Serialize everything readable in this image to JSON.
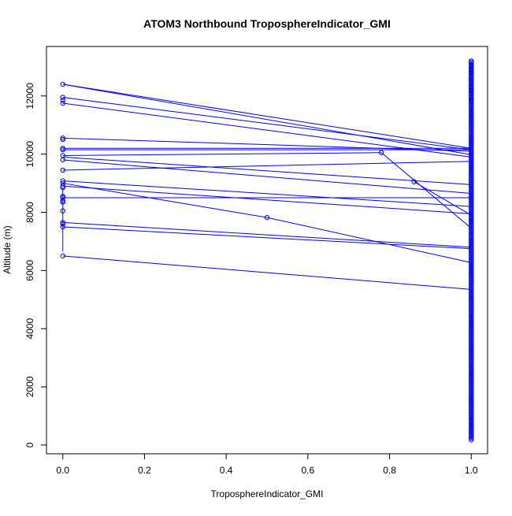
{
  "chart_data": {
    "type": "scatter",
    "title": "ATOM3 Northbound TroposphereIndicator_GMI",
    "xlabel": "TroposphereIndicator_GMI",
    "ylabel": "Altitude (m)",
    "xlim": [
      -0.04,
      1.04
    ],
    "ylim": [
      -300,
      13700
    ],
    "x_ticks": [
      0.0,
      0.2,
      0.4,
      0.6,
      0.8,
      1.0
    ],
    "x_tick_labels": [
      "0.0",
      "0.2",
      "0.4",
      "0.6",
      "0.8",
      "1.0"
    ],
    "y_ticks": [
      0,
      2000,
      4000,
      6000,
      8000,
      10000,
      12000
    ],
    "y_tick_labels": [
      "0",
      "2000",
      "4000",
      "6000",
      "8000",
      "10000",
      "12000"
    ],
    "grid": false,
    "legend": "none",
    "series_color": "#0000ff",
    "marker": "open-circle",
    "points": [
      {
        "x": 0.0,
        "y": 12400
      },
      {
        "x": 0.0,
        "y": 11950
      },
      {
        "x": 0.0,
        "y": 11850
      },
      {
        "x": 0.0,
        "y": 11750
      },
      {
        "x": 0.0,
        "y": 10550
      },
      {
        "x": 0.0,
        "y": 10500
      },
      {
        "x": 0.0,
        "y": 10200
      },
      {
        "x": 0.0,
        "y": 10150
      },
      {
        "x": 0.0,
        "y": 9950
      },
      {
        "x": 0.0,
        "y": 9800
      },
      {
        "x": 0.0,
        "y": 9450
      },
      {
        "x": 0.0,
        "y": 9080
      },
      {
        "x": 0.0,
        "y": 9000
      },
      {
        "x": 0.0,
        "y": 8900
      },
      {
        "x": 0.0,
        "y": 8850
      },
      {
        "x": 0.0,
        "y": 8550
      },
      {
        "x": 0.0,
        "y": 8500
      },
      {
        "x": 0.0,
        "y": 8400
      },
      {
        "x": 0.0,
        "y": 8350
      },
      {
        "x": 0.0,
        "y": 8050
      },
      {
        "x": 0.0,
        "y": 7650
      },
      {
        "x": 0.0,
        "y": 7600
      },
      {
        "x": 0.0,
        "y": 7500
      },
      {
        "x": 0.0,
        "y": 6500
      },
      {
        "x": 0.5,
        "y": 7820
      },
      {
        "x": 0.78,
        "y": 10050
      },
      {
        "x": 0.86,
        "y": 9050
      }
    ],
    "x1_column": {
      "x": 1.0,
      "y_min": 180,
      "y_max": 13200,
      "step": 55
    },
    "x1_extra": [
      13200,
      12900,
      12800,
      12550,
      12500,
      12300,
      12200,
      11850,
      11800
    ],
    "segments": [
      {
        "x1": 0.0,
        "y1": 12400,
        "x2": 1.0,
        "y2": 10200
      },
      {
        "x1": 0.0,
        "y1": 12400,
        "x2": 1.0,
        "y2": 9980
      },
      {
        "x1": 0.0,
        "y1": 11950,
        "x2": 1.0,
        "y2": 10150
      },
      {
        "x1": 0.0,
        "y1": 11750,
        "x2": 1.0,
        "y2": 9900
      },
      {
        "x1": 0.0,
        "y1": 10550,
        "x2": 1.0,
        "y2": 10100
      },
      {
        "x1": 0.0,
        "y1": 10200,
        "x2": 1.0,
        "y2": 10200
      },
      {
        "x1": 0.0,
        "y1": 10150,
        "x2": 1.0,
        "y2": 10150
      },
      {
        "x1": 0.0,
        "y1": 9950,
        "x2": 0.78,
        "y2": 10050
      },
      {
        "x1": 0.0,
        "y1": 9900,
        "x2": 1.0,
        "y2": 8950
      },
      {
        "x1": 0.0,
        "y1": 9800,
        "x2": 1.0,
        "y2": 8650
      },
      {
        "x1": 0.0,
        "y1": 9450,
        "x2": 1.0,
        "y2": 9750
      },
      {
        "x1": 0.0,
        "y1": 9080,
        "x2": 1.0,
        "y2": 8200
      },
      {
        "x1": 0.0,
        "y1": 9000,
        "x2": 0.5,
        "y2": 7820
      },
      {
        "x1": 0.0,
        "y1": 8900,
        "x2": 1.0,
        "y2": 7950
      },
      {
        "x1": 0.0,
        "y1": 8500,
        "x2": 1.0,
        "y2": 8500
      },
      {
        "x1": 0.0,
        "y1": 7650,
        "x2": 1.0,
        "y2": 6800
      },
      {
        "x1": 0.0,
        "y1": 7500,
        "x2": 1.0,
        "y2": 6750
      },
      {
        "x1": 0.0,
        "y1": 6500,
        "x2": 1.0,
        "y2": 5350
      },
      {
        "x1": 0.0,
        "y1": 8850,
        "x2": 0.0,
        "y2": 6650
      },
      {
        "x1": 0.5,
        "y1": 7820,
        "x2": 1.0,
        "y2": 6270
      },
      {
        "x1": 0.78,
        "y1": 10050,
        "x2": 1.0,
        "y2": 7450
      },
      {
        "x1": 0.86,
        "y1": 9050,
        "x2": 1.0,
        "y2": 7900
      }
    ]
  }
}
